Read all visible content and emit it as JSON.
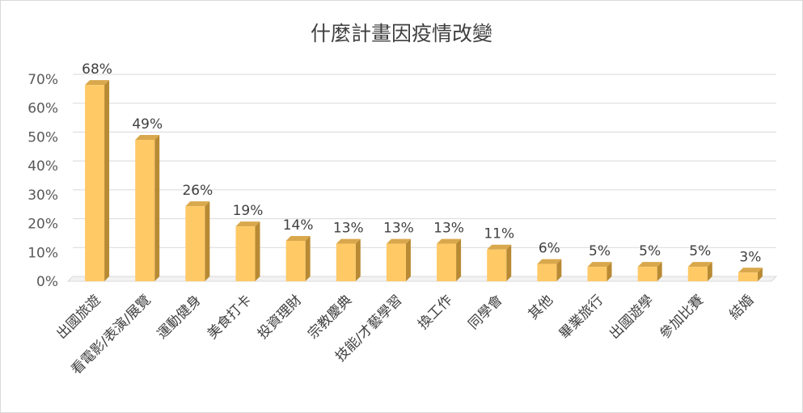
{
  "chart_data": {
    "type": "bar",
    "title": "什麼計畫因疫情改變",
    "categories": [
      "出國旅遊",
      "看電影/表演/展覽",
      "運動健身",
      "美食打卡",
      "投資理財",
      "宗教慶典",
      "技能/才藝學習",
      "換工作",
      "同學會",
      "其他",
      "畢業旅行",
      "出國遊學",
      "參加比賽",
      "結婚"
    ],
    "values": [
      68,
      49,
      26,
      19,
      14,
      13,
      13,
      13,
      11,
      6,
      5,
      5,
      5,
      3
    ],
    "value_labels": [
      "68%",
      "49%",
      "26%",
      "19%",
      "14%",
      "13%",
      "13%",
      "13%",
      "11%",
      "6%",
      "5%",
      "5%",
      "5%",
      "3%"
    ],
    "ylim": [
      0,
      70
    ],
    "yticks": [
      "0%",
      "10%",
      "20%",
      "30%",
      "40%",
      "50%",
      "60%",
      "70%"
    ],
    "xlabel": "",
    "ylabel": "",
    "grid": true,
    "legend": "none",
    "bar_color": "#ffc966",
    "bar_side_color": "#b88a33",
    "bar_top_color": "#d9a84c"
  }
}
